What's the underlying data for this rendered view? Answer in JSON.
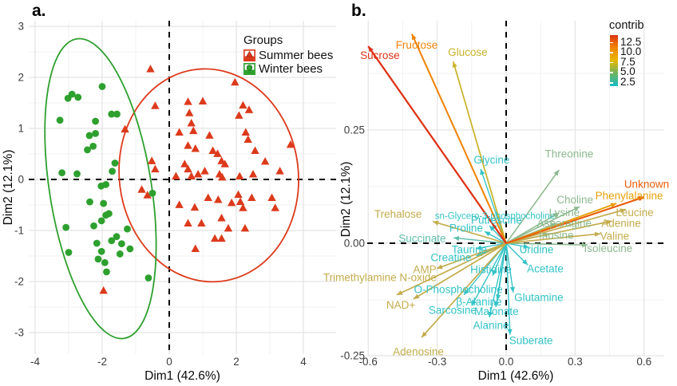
{
  "chart_data": [
    {
      "id": "panel_a",
      "type": "scatter",
      "panel_label": "a.",
      "xlabel": "Dim1 (42.6%)",
      "ylabel": "Dim2 (12.1%)",
      "xlim": [
        -4.2,
        5.0
      ],
      "ylim": [
        -3.45,
        3.1
      ],
      "xtick_values": [
        -4,
        -2,
        0,
        2,
        4
      ],
      "xtick_labels": [
        "-4",
        "-2",
        "0",
        "2",
        "4"
      ],
      "ytick_values": [
        -3,
        -2,
        -1,
        0,
        1,
        2,
        3
      ],
      "ytick_labels": [
        "-3",
        "-2",
        "-1",
        "0",
        "1",
        "2",
        "3"
      ],
      "grid": true,
      "reference_lines": {
        "x": 0,
        "y": 0,
        "style": "dashed",
        "color": "#000000"
      },
      "legend": {
        "title": "Groups",
        "position": "top-right-inside",
        "items": [
          {
            "label": "Summer bees",
            "shape": "triangle",
            "color": "#DC3A1C"
          },
          {
            "label": "Winter bees",
            "shape": "circle",
            "color": "#2EA02E"
          }
        ]
      },
      "series": [
        {
          "name": "Summer bees",
          "shape": "triangle",
          "color": "#DC3A1C",
          "points": [
            [
              -0.56,
              2.16
            ],
            [
              1.96,
              1.9
            ],
            [
              -0.42,
              1.44
            ],
            [
              0.56,
              1.52
            ],
            [
              1.0,
              1.53
            ],
            [
              2.2,
              1.45
            ],
            [
              2.38,
              1.36
            ],
            [
              2.08,
              1.25
            ],
            [
              0.6,
              1.3
            ],
            [
              0.66,
              1.1
            ],
            [
              -1.32,
              0.98
            ],
            [
              0.3,
              0.92
            ],
            [
              0.72,
              0.95
            ],
            [
              1.2,
              0.86
            ],
            [
              2.28,
              0.92
            ],
            [
              2.35,
              0.78
            ],
            [
              3.62,
              0.68
            ],
            [
              0.56,
              0.66
            ],
            [
              0.78,
              0.6
            ],
            [
              1.3,
              0.56
            ],
            [
              1.44,
              0.5
            ],
            [
              2.56,
              0.56
            ],
            [
              2.86,
              0.35
            ],
            [
              1.56,
              0.36
            ],
            [
              1.66,
              0.3
            ],
            [
              0.46,
              0.3
            ],
            [
              0.56,
              0.2
            ],
            [
              -0.52,
              0.36
            ],
            [
              -0.42,
              0.2
            ],
            [
              0.2,
              0.06
            ],
            [
              0.66,
              0.06
            ],
            [
              0.86,
              0.1
            ],
            [
              1.06,
              0.16
            ],
            [
              1.5,
              0.1
            ],
            [
              1.58,
              0.04
            ],
            [
              2.1,
              0.06
            ],
            [
              2.5,
              0.1
            ],
            [
              3.3,
              0.16
            ],
            [
              -0.82,
              -0.2
            ],
            [
              -0.65,
              -0.31
            ],
            [
              0.3,
              -0.5
            ],
            [
              0.76,
              -0.55
            ],
            [
              1.16,
              -0.36
            ],
            [
              1.46,
              -0.4
            ],
            [
              1.86,
              -0.46
            ],
            [
              2.06,
              -0.3
            ],
            [
              2.12,
              -0.44
            ],
            [
              2.46,
              -0.36
            ],
            [
              2.2,
              -0.56
            ],
            [
              3.06,
              -0.36
            ],
            [
              3.16,
              -0.56
            ],
            [
              0.56,
              -0.86
            ],
            [
              0.96,
              -0.86
            ],
            [
              1.56,
              -0.76
            ],
            [
              1.76,
              -0.96
            ],
            [
              2.26,
              -0.96
            ],
            [
              1.36,
              -1.16
            ],
            [
              1.56,
              -1.16
            ],
            [
              0.78,
              -1.36
            ],
            [
              -1.96,
              -2.18
            ]
          ]
        },
        {
          "name": "Winter bees",
          "shape": "circle",
          "color": "#2EA02E",
          "points": [
            [
              -3.26,
              1.16
            ],
            [
              -3.02,
              1.59
            ],
            [
              -2.9,
              1.67
            ],
            [
              -2.72,
              1.61
            ],
            [
              -2.0,
              1.82
            ],
            [
              -2.2,
              1.14
            ],
            [
              -1.72,
              1.28
            ],
            [
              -1.56,
              1.28
            ],
            [
              -2.38,
              0.86
            ],
            [
              -2.2,
              0.9
            ],
            [
              -2.44,
              0.58
            ],
            [
              -2.27,
              0.65
            ],
            [
              -3.2,
              0.13
            ],
            [
              -2.75,
              0.11
            ],
            [
              -1.62,
              0.32
            ],
            [
              -1.7,
              0.16
            ],
            [
              -2.03,
              -0.13
            ],
            [
              -1.89,
              -0.1
            ],
            [
              -2.37,
              -0.44
            ],
            [
              -1.96,
              -0.47
            ],
            [
              -1.89,
              -0.7
            ],
            [
              -1.8,
              -0.67
            ],
            [
              -2.02,
              -0.81
            ],
            [
              -2.25,
              -0.91
            ],
            [
              -3.08,
              -0.94
            ],
            [
              -1.25,
              -0.97
            ],
            [
              -3.0,
              -1.43
            ],
            [
              -2.16,
              -1.25
            ],
            [
              -1.72,
              -1.2
            ],
            [
              -1.57,
              -1.12
            ],
            [
              -1.42,
              -1.26
            ],
            [
              -1.17,
              -1.36
            ],
            [
              -1.47,
              -1.46
            ],
            [
              -2.02,
              -1.41
            ],
            [
              -2.12,
              -1.56
            ],
            [
              -1.92,
              -1.63
            ],
            [
              -1.87,
              -1.81
            ],
            [
              -0.62,
              -1.93
            ],
            [
              -0.5,
              -0.27
            ]
          ]
        }
      ],
      "ellipses": [
        {
          "group": "Summer bees",
          "color": "#DC3A1C",
          "cx": 1.18,
          "cy": 0.08,
          "rx_units": 2.67,
          "ry_units": 2.09,
          "rotate_deg": -7
        },
        {
          "group": "Winter bees",
          "color": "#2EA02E",
          "cx": -2.05,
          "cy": -0.18,
          "rx_units": 1.52,
          "ry_units": 2.97,
          "rotate_deg": -9
        }
      ]
    },
    {
      "id": "panel_b",
      "type": "biplot-arrows",
      "panel_label": "b.",
      "xlabel": "Dim1 (42.6%)",
      "ylabel": "Dim2 (12.1%)",
      "xlim": [
        -0.72,
        0.69
      ],
      "ylim": [
        -0.28,
        0.49
      ],
      "xtick_values": [
        -0.6,
        -0.3,
        0.0,
        0.3,
        0.6
      ],
      "xtick_labels": [
        "-0.6",
        "-0.3",
        "0.0",
        "0.3",
        "0.6"
      ],
      "ytick_values": [
        0.25,
        0.0,
        -0.25
      ],
      "ytick_labels": [
        "0.25",
        "0.00",
        "-0.25"
      ],
      "grid": true,
      "reference_lines": {
        "x": 0,
        "y": 0,
        "style": "dashed",
        "color": "#000000"
      },
      "colorbar": {
        "title": "contrib",
        "tick_labels": [
          "12.5",
          "10.0",
          "7.5",
          "5.0",
          "2.5"
        ],
        "gradient_low_to_high": [
          "#14BCC3",
          "#73B35D",
          "#E7B800",
          "#F18303",
          "#DC3413"
        ]
      },
      "variables": [
        {
          "name": "Sucrose",
          "x": -0.6,
          "y": 0.435,
          "lx": -0.549,
          "ly": 0.414,
          "contrib": 13.0,
          "color": "#DE3217"
        },
        {
          "name": "Fructose",
          "x": -0.41,
          "y": 0.462,
          "lx": -0.389,
          "ly": 0.437,
          "contrib": 10.5,
          "color": "#F08307"
        },
        {
          "name": "Glucose",
          "x": -0.23,
          "y": 0.401,
          "lx": -0.167,
          "ly": 0.421,
          "contrib": 7.0,
          "color": "#C9B22A"
        },
        {
          "name": "Glycine",
          "x": -0.111,
          "y": 0.164,
          "lx": -0.063,
          "ly": 0.183,
          "contrib": 3.0,
          "color": "#33C3C7"
        },
        {
          "name": "Threonine",
          "x": 0.23,
          "y": 0.162,
          "lx": 0.274,
          "ly": 0.196,
          "contrib": 5.0,
          "color": "#8CB98E"
        },
        {
          "name": "Unknown",
          "x": 0.6,
          "y": 0.102,
          "lx": 0.611,
          "ly": 0.129,
          "contrib": 11.5,
          "color": "#EB5E09"
        },
        {
          "name": "Phenylalanine",
          "x": 0.48,
          "y": 0.088,
          "lx": 0.535,
          "ly": 0.104,
          "contrib": 9.5,
          "color": "#E8A00A"
        },
        {
          "name": "Choline",
          "x": 0.32,
          "y": 0.081,
          "lx": 0.299,
          "ly": 0.095,
          "contrib": 4.5,
          "color": "#8CB98E"
        },
        {
          "name": "Leucine",
          "x": 0.52,
          "y": 0.075,
          "lx": 0.559,
          "ly": 0.067,
          "contrib": 6.5,
          "color": "#C3AC4B"
        },
        {
          "name": "Lysine",
          "x": 0.23,
          "y": 0.067,
          "lx": 0.253,
          "ly": 0.067,
          "contrib": 4.5,
          "color": "#8CB98E"
        },
        {
          "name": "Asparagine",
          "x": 0.22,
          "y": 0.044,
          "lx": 0.253,
          "ly": 0.043,
          "contrib": 4.5,
          "color": "#8CB98E"
        },
        {
          "name": "Adenine",
          "x": 0.46,
          "y": 0.049,
          "lx": 0.5,
          "ly": 0.043,
          "contrib": 6.0,
          "color": "#C3AC4B"
        },
        {
          "name": "Inosine",
          "x": 0.19,
          "y": 0.021,
          "lx": 0.218,
          "ly": 0.017,
          "contrib": 4.5,
          "color": "#8CB98E"
        },
        {
          "name": "Valine",
          "x": 0.41,
          "y": 0.021,
          "lx": 0.472,
          "ly": 0.015,
          "contrib": 6.0,
          "color": "#C3AC4B"
        },
        {
          "name": "Isoleucine",
          "x": 0.354,
          "y": -0.004,
          "lx": 0.444,
          "ly": -0.012,
          "contrib": 4.5,
          "color": "#8CB98E"
        },
        {
          "name": "Uridine",
          "x": 0.1,
          "y": -0.009,
          "lx": 0.132,
          "ly": -0.015,
          "contrib": 3.0,
          "color": "#33C3C7"
        },
        {
          "name": "Acetate",
          "x": 0.094,
          "y": -0.048,
          "lx": 0.17,
          "ly": -0.057,
          "contrib": 3.0,
          "color": "#33C3C7"
        },
        {
          "name": "Glutamine",
          "x": 0.031,
          "y": -0.109,
          "lx": 0.142,
          "ly": -0.121,
          "contrib": 3.0,
          "color": "#33C3C7"
        },
        {
          "name": "Suberate",
          "x": 0.017,
          "y": -0.202,
          "lx": 0.108,
          "ly": -0.216,
          "contrib": 3.0,
          "color": "#33C3C7"
        },
        {
          "name": "Alanine",
          "x": -0.073,
          "y": -0.164,
          "lx": -0.066,
          "ly": -0.182,
          "contrib": 2.5,
          "color": "#33C3C7"
        },
        {
          "name": "Malonate",
          "x": -0.045,
          "y": -0.141,
          "lx": -0.042,
          "ly": -0.151,
          "contrib": 2.5,
          "color": "#33C3C7"
        },
        {
          "name": "β-Alanine",
          "x": -0.038,
          "y": -0.126,
          "lx": -0.118,
          "ly": -0.13,
          "contrib": 2.5,
          "color": "#33C3C7"
        },
        {
          "name": "Sarcosine",
          "x": -0.15,
          "y": -0.138,
          "lx": -0.233,
          "ly": -0.149,
          "contrib": 2.5,
          "color": "#33C3C7"
        },
        {
          "name": "O-Phosphocholine",
          "x": -0.184,
          "y": -0.114,
          "lx": -0.208,
          "ly": -0.103,
          "contrib": 3.0,
          "color": "#33C3C7"
        },
        {
          "name": "Histidine",
          "x": -0.059,
          "y": -0.072,
          "lx": -0.066,
          "ly": -0.059,
          "contrib": 2.5,
          "color": "#33C3C7"
        },
        {
          "name": "Taurine",
          "x": -0.132,
          "y": -0.012,
          "lx": -0.16,
          "ly": -0.015,
          "contrib": 3.0,
          "color": "#33C3C7"
        },
        {
          "name": "Creatine",
          "x": -0.13,
          "y": -0.028,
          "lx": -0.24,
          "ly": -0.033,
          "contrib": 3.0,
          "color": "#33C3C7"
        },
        {
          "name": "AMP",
          "x": -0.302,
          "y": -0.056,
          "lx": -0.354,
          "ly": -0.059,
          "contrib": 6.0,
          "color": "#C3AC4B"
        },
        {
          "name": "Trimethylamine N-oxide",
          "x": -0.476,
          "y": -0.114,
          "lx": -0.549,
          "ly": -0.077,
          "contrib": 6.5,
          "color": "#C3AC4B"
        },
        {
          "name": "NAD+",
          "x": -0.403,
          "y": -0.123,
          "lx": -0.458,
          "ly": -0.137,
          "contrib": 6.5,
          "color": "#C3AC4B"
        },
        {
          "name": "Adenosine",
          "x": -0.368,
          "y": -0.208,
          "lx": -0.382,
          "ly": -0.24,
          "contrib": 6.5,
          "color": "#C3AC4B"
        },
        {
          "name": "Trehalose",
          "x": -0.319,
          "y": 0.048,
          "lx": -0.47,
          "ly": 0.063,
          "contrib": 6.5,
          "color": "#C3AC4B"
        },
        {
          "name": "Succinate",
          "x": -0.229,
          "y": 0.012,
          "lx": -0.365,
          "ly": 0.01,
          "contrib": 4.0,
          "color": "#5FBFAC"
        },
        {
          "name": "Proline",
          "x": -0.094,
          "y": 0.026,
          "lx": -0.174,
          "ly": 0.033,
          "contrib": 3.0,
          "color": "#33C3C7"
        },
        {
          "name": "Putrescine",
          "x": -0.073,
          "y": 0.039,
          "lx": -0.042,
          "ly": 0.05,
          "contrib": 3.0,
          "color": "#33C3C7"
        },
        {
          "name": "sn-Glycero-3-phosphocholine",
          "x": -0.062,
          "y": 0.044,
          "lx": -0.049,
          "ly": 0.061,
          "contrib": 3.0,
          "color": "#33C3C7",
          "small": true
        }
      ]
    }
  ]
}
